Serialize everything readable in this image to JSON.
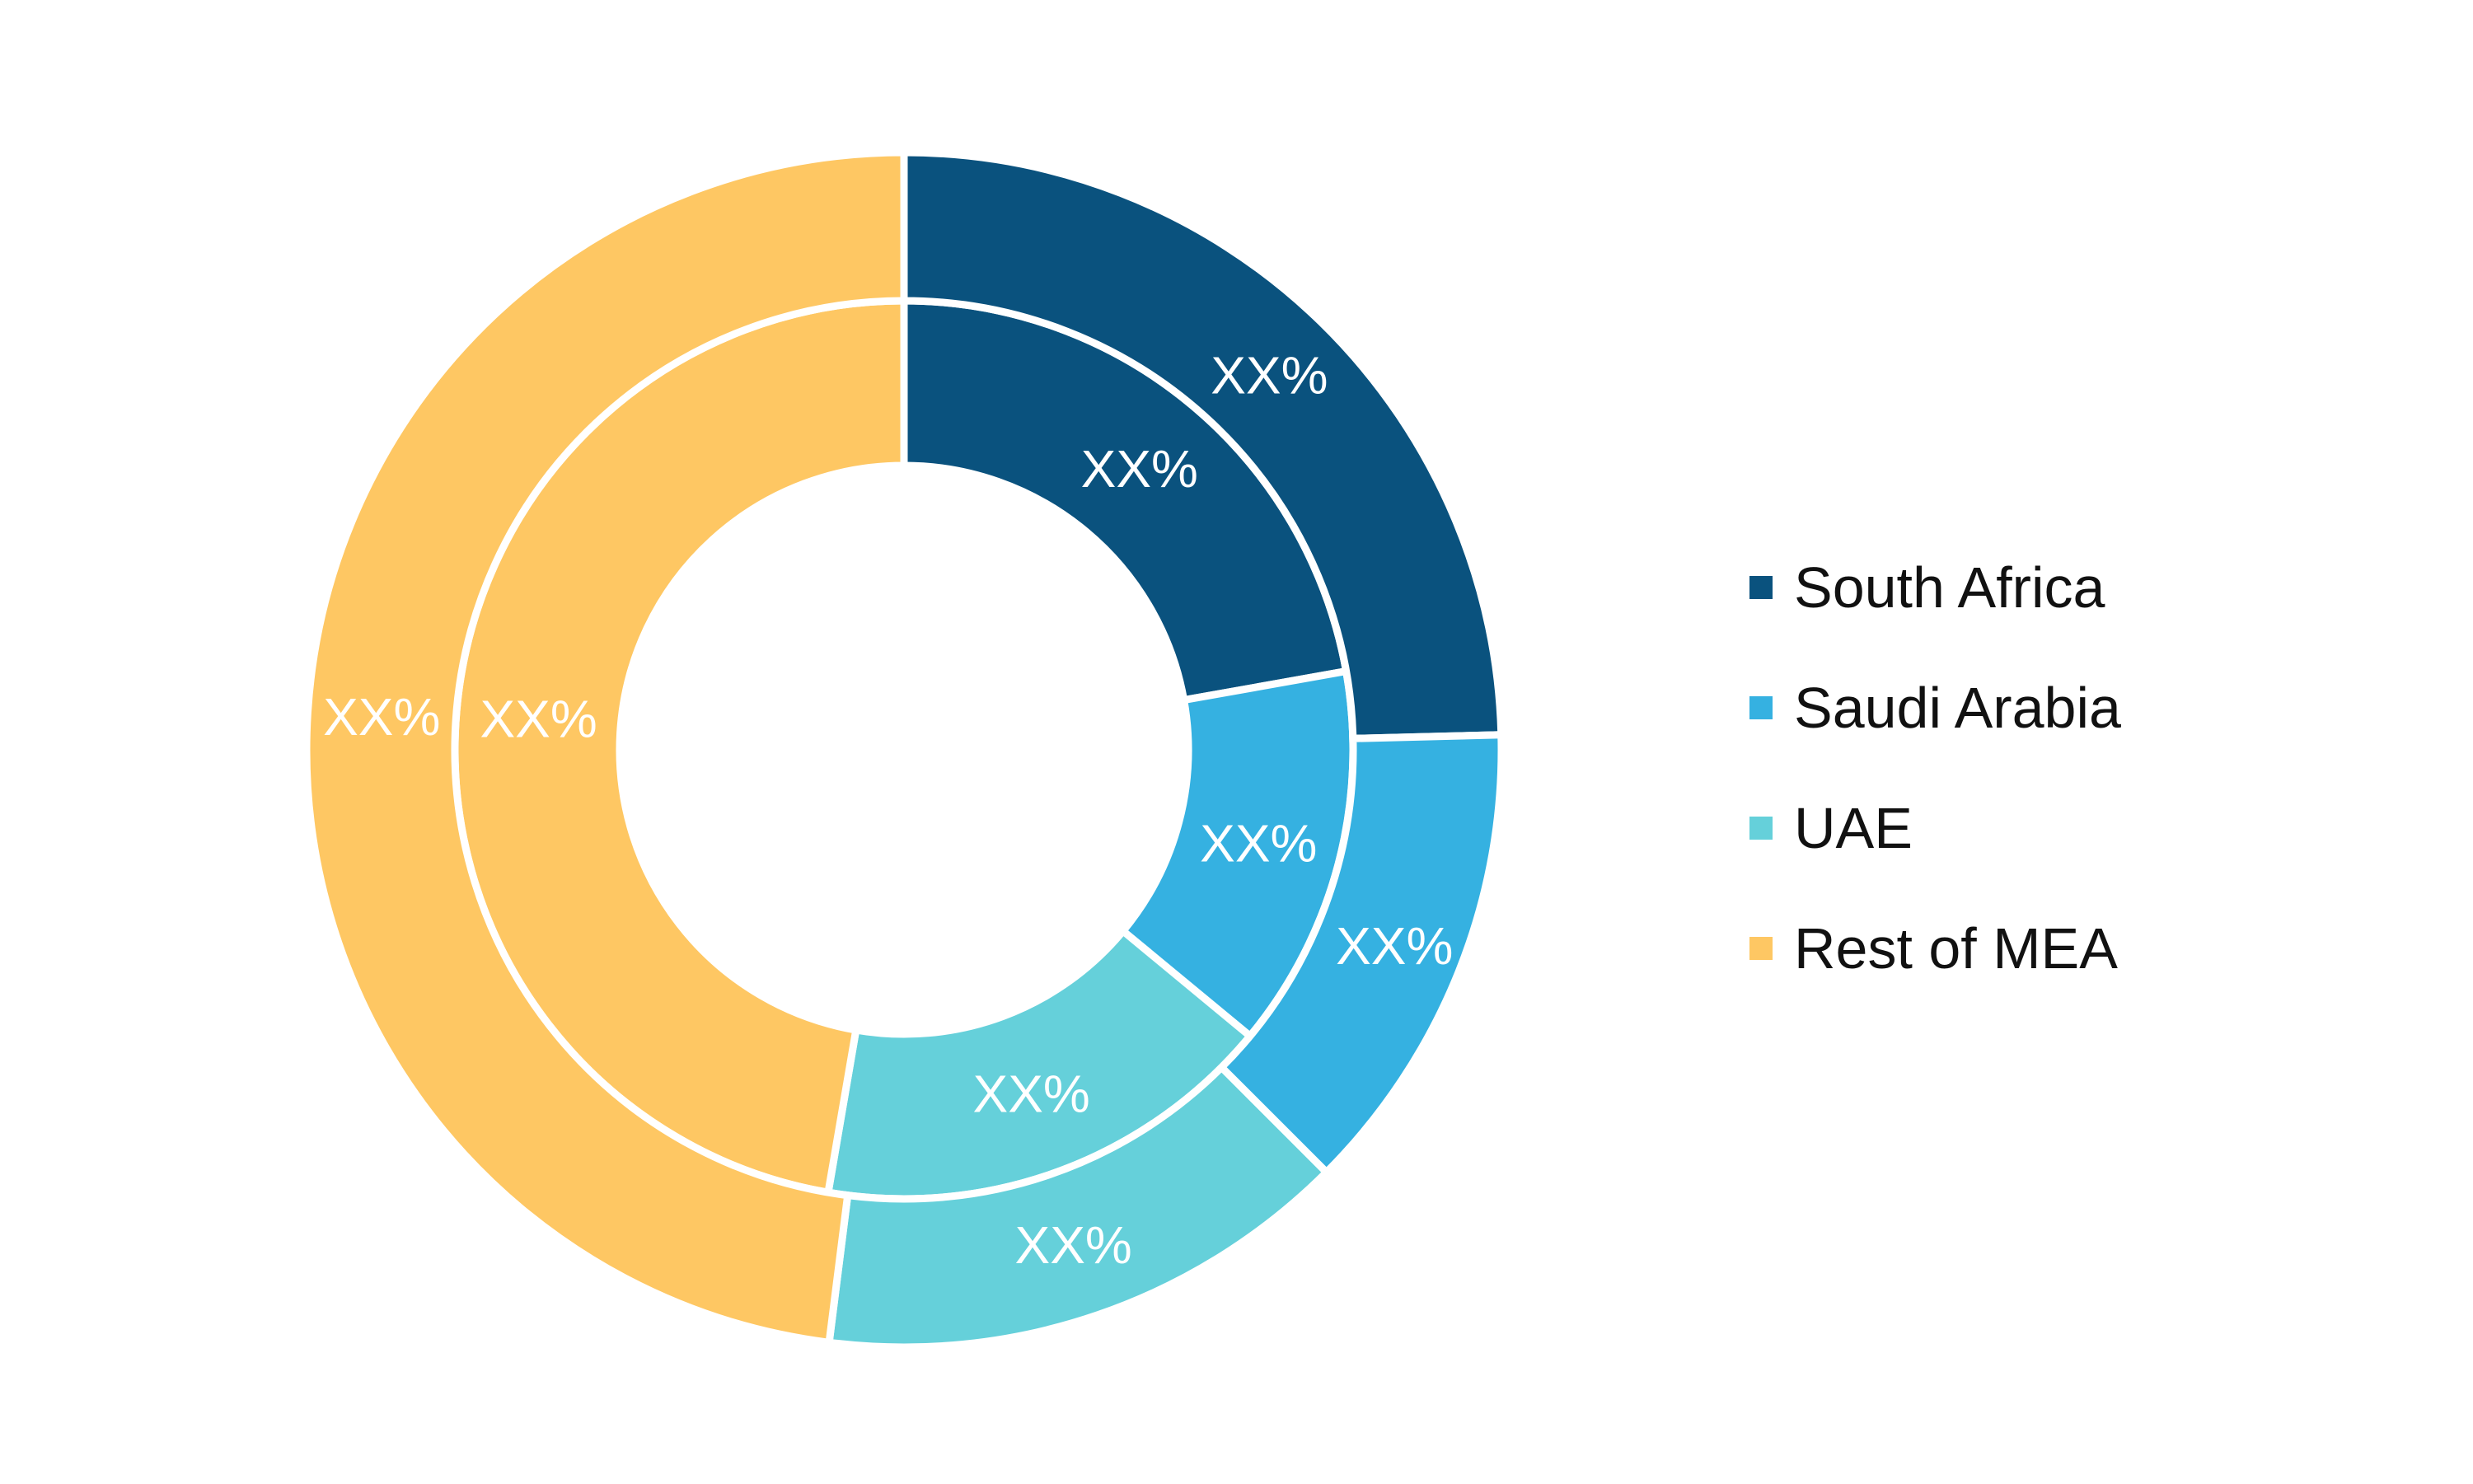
{
  "chart_data": {
    "type": "pie",
    "variant": "nested-donut",
    "title": "",
    "categories": [
      "South Africa",
      "Saudi Arabia",
      "UAE",
      "Rest of MEA"
    ],
    "colors": [
      "#0a527e",
      "#35b1e1",
      "#65d0da",
      "#fec763"
    ],
    "series": [
      {
        "values": [
          22.2,
          13.8,
          16.7,
          47.3
        ],
        "labels": [
          "XX%",
          "XX%",
          "XX%",
          "XX%"
        ]
      },
      {
        "values": [
          24.6,
          12.9,
          14.5,
          48.0
        ],
        "labels": [
          "XX%",
          "XX%",
          "XX%",
          "XX%"
        ]
      }
    ],
    "legend": {
      "position": "right"
    }
  }
}
